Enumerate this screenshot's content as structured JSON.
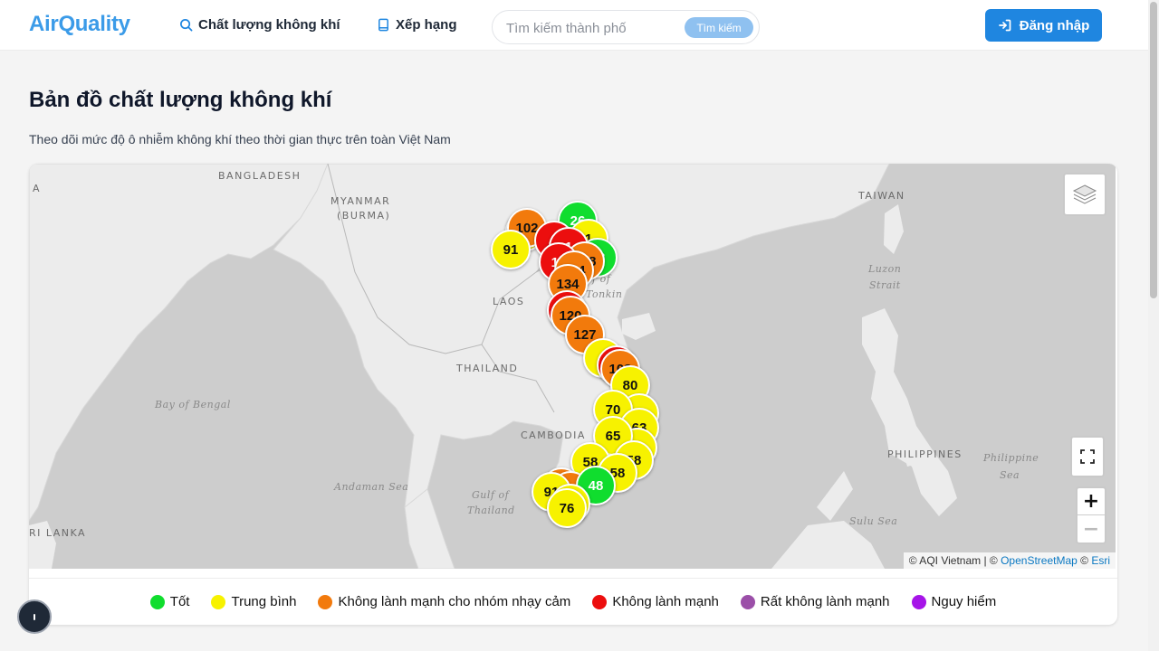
{
  "header": {
    "logo": "AirQuality",
    "nav": [
      {
        "label": "Chất lượng không khí",
        "icon": "search-icon"
      },
      {
        "label": "Xếp hạng",
        "icon": "book-icon"
      }
    ],
    "search": {
      "placeholder": "Tìm kiếm thành phố",
      "button_label": "Tìm kiếm"
    },
    "login_label": "Đăng nhập"
  },
  "page": {
    "title": "Bản đồ chất lượng không khí",
    "subtitle": "Theo dõi mức độ ô nhiễm không khí theo thời gian thực trên toàn Việt Nam"
  },
  "map": {
    "labels": {
      "bangladesh": "BANGLADESH",
      "myanmar": "MYANMAR",
      "burma": "(BURMA)",
      "laos": "LAOS",
      "thailand": "THAILAND",
      "cambodia": "CAMBODIA",
      "taiwan": "TAIWAN",
      "philippines": "PHILIPPINES",
      "sri_lanka": "RI LANKA",
      "a": "A"
    },
    "seas": {
      "bay_of_bengal": "Bay of Bengal",
      "andaman": "Andaman Sea",
      "gulf_thailand_1": "Gulf of",
      "gulf_thailand_2": "Thailand",
      "gulf_tonkin_1": "f of",
      "gulf_tonkin_2": "Tonkin",
      "luzon_1": "Luzon",
      "luzon_2": "Strait",
      "philippine_1": "Philippine",
      "philippine_2": "Sea",
      "sulu": "Sulu Sea"
    },
    "markers": [
      {
        "value": "91",
        "level": "mod"
      },
      {
        "value": "102",
        "level": "usg"
      },
      {
        "value": "26",
        "level": "good"
      },
      {
        "value": "1",
        "level": "mod"
      },
      {
        "value": "1",
        "level": "unh"
      },
      {
        "value": "16",
        "level": "unh"
      },
      {
        "value": "134",
        "level": "usg"
      },
      {
        "value": "120",
        "level": "usg"
      },
      {
        "value": "127",
        "level": "usg"
      },
      {
        "value": "9",
        "level": "mod"
      },
      {
        "value": "108",
        "level": "usg"
      },
      {
        "value": "80",
        "level": "mod"
      },
      {
        "value": "70",
        "level": "mod"
      },
      {
        "value": "63",
        "level": "mod"
      },
      {
        "value": "65",
        "level": "mod"
      },
      {
        "value": "58",
        "level": "mod"
      },
      {
        "value": "58",
        "level": "mod"
      },
      {
        "value": "48",
        "level": "good"
      },
      {
        "value": "91",
        "level": "mod"
      },
      {
        "value": "76",
        "level": "mod"
      }
    ],
    "attribution": {
      "prefix": "© AQI Vietnam | © ",
      "osm": "OpenStreetMap",
      "mid": " © ",
      "esri": "Esri"
    },
    "zoom_in": "+",
    "zoom_out": "−"
  },
  "legend": [
    {
      "label": "Tốt",
      "color": "#10dd2e"
    },
    {
      "label": "Trung bình",
      "color": "#f7f200"
    },
    {
      "label": "Không lành mạnh cho nhóm nhạy cảm",
      "color": "#f27a0c"
    },
    {
      "label": "Không lành mạnh",
      "color": "#ec0e0e"
    },
    {
      "label": "Rất không lành mạnh",
      "color": "#9b4fa8"
    },
    {
      "label": "Nguy hiểm",
      "color": "#a614e8"
    }
  ]
}
